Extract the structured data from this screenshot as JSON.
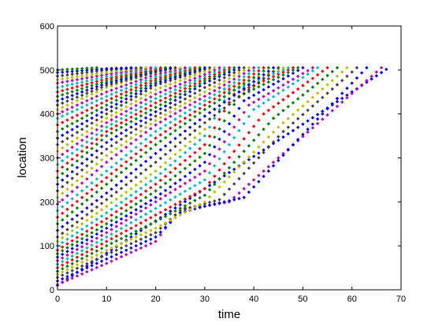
{
  "chart_data": {
    "type": "scatter",
    "title": "",
    "xlabel": "time",
    "ylabel": "location",
    "xlim": [
      0,
      70
    ],
    "ylim": [
      0,
      600
    ],
    "xticks": [
      "0",
      "10",
      "20",
      "30",
      "40",
      "50",
      "60",
      "70"
    ],
    "yticks": [
      "0",
      "100",
      "200",
      "300",
      "400",
      "500",
      "600"
    ],
    "grid": false,
    "legend": "none",
    "marker": "diamond",
    "marker_colors": [
      "#0000ff",
      "#008000",
      "#ff0000",
      "#00bfbf",
      "#bf00bf",
      "#bfbf00",
      "#404040"
    ],
    "max_location": 505,
    "series_description": "trajectories, one per color cycle",
    "series": [
      {
        "color": "#0000ff",
        "x": [
          0,
          67.5
        ],
        "y": [
          10,
          505
        ]
      },
      {
        "color": "#bf00bf",
        "x": [
          0,
          10,
          20,
          25,
          30,
          35,
          45,
          66
        ],
        "y": [
          12,
          60,
          110,
          185,
          190,
          200,
          300,
          505
        ]
      },
      {
        "color": "#0000ff",
        "x": [
          0,
          10,
          20,
          25,
          30,
          38,
          48,
          63
        ],
        "y": [
          20,
          70,
          120,
          175,
          190,
          210,
          330,
          505
        ]
      },
      {
        "color": "#404040",
        "x": [
          0,
          10,
          20,
          25,
          33,
          46,
          61
        ],
        "y": [
          28,
          80,
          130,
          180,
          205,
          360,
          505
        ]
      },
      {
        "color": "#bfbf00",
        "x": [
          0,
          10,
          20,
          30,
          45,
          59
        ],
        "y": [
          35,
          90,
          140,
          200,
          370,
          505
        ]
      },
      {
        "color": "#008000",
        "x": [
          0,
          10,
          20,
          30,
          44,
          57
        ],
        "y": [
          42,
          100,
          155,
          215,
          390,
          505
        ]
      },
      {
        "color": "#ff0000",
        "x": [
          0,
          10,
          20,
          30,
          42,
          55
        ],
        "y": [
          50,
          110,
          170,
          230,
          400,
          505
        ]
      },
      {
        "color": "#00bfbf",
        "x": [
          0,
          10,
          20,
          30,
          40,
          53
        ],
        "y": [
          58,
          120,
          185,
          250,
          410,
          505
        ]
      },
      {
        "color": "#bf00bf",
        "x": [
          0,
          10,
          20,
          30,
          39,
          52
        ],
        "y": [
          66,
          130,
          200,
          270,
          420,
          505
        ]
      },
      {
        "color": "#0000ff",
        "x": [
          0,
          10,
          20,
          30,
          38,
          50
        ],
        "y": [
          74,
          140,
          210,
          290,
          430,
          505
        ]
      },
      {
        "color": "#008000",
        "x": [
          0,
          10,
          20,
          30,
          37,
          49
        ],
        "y": [
          82,
          150,
          225,
          310,
          440,
          505
        ]
      },
      {
        "color": "#ff0000",
        "x": [
          0,
          10,
          20,
          30,
          36,
          48
        ],
        "y": [
          90,
          162,
          240,
          330,
          445,
          505
        ]
      },
      {
        "color": "#00bfbf",
        "x": [
          0,
          10,
          20,
          30,
          35,
          47
        ],
        "y": [
          100,
          175,
          255,
          350,
          450,
          505
        ]
      },
      {
        "color": "#bfbf00",
        "x": [
          0,
          10,
          20,
          30,
          34,
          46
        ],
        "y": [
          110,
          190,
          270,
          365,
          455,
          505
        ]
      },
      {
        "color": "#404040",
        "x": [
          0,
          10,
          20,
          30,
          45
        ],
        "y": [
          120,
          205,
          290,
          380,
          505
        ]
      },
      {
        "color": "#0000ff",
        "x": [
          0,
          10,
          20,
          30,
          44
        ],
        "y": [
          135,
          220,
          310,
          395,
          505
        ]
      },
      {
        "color": "#008000",
        "x": [
          0,
          10,
          20,
          30,
          43
        ],
        "y": [
          150,
          240,
          330,
          410,
          505
        ]
      },
      {
        "color": "#ff0000",
        "x": [
          0,
          10,
          20,
          30,
          42
        ],
        "y": [
          165,
          255,
          345,
          420,
          505
        ]
      },
      {
        "color": "#00bfbf",
        "x": [
          0,
          10,
          20,
          30,
          41
        ],
        "y": [
          180,
          270,
          360,
          430,
          505
        ]
      },
      {
        "color": "#bf00bf",
        "x": [
          0,
          10,
          20,
          30,
          40
        ],
        "y": [
          195,
          290,
          375,
          440,
          505
        ]
      },
      {
        "color": "#bfbf00",
        "x": [
          0,
          10,
          20,
          30,
          39
        ],
        "y": [
          210,
          305,
          385,
          450,
          505
        ]
      },
      {
        "color": "#404040",
        "x": [
          0,
          10,
          20,
          30,
          38
        ],
        "y": [
          225,
          320,
          395,
          460,
          505
        ]
      },
      {
        "color": "#0000ff",
        "x": [
          0,
          10,
          20,
          30,
          37
        ],
        "y": [
          240,
          335,
          405,
          470,
          505
        ]
      },
      {
        "color": "#008000",
        "x": [
          0,
          10,
          20,
          30,
          36
        ],
        "y": [
          255,
          350,
          415,
          475,
          505
        ]
      },
      {
        "color": "#ff0000",
        "x": [
          0,
          10,
          20,
          30,
          35
        ],
        "y": [
          270,
          360,
          425,
          480,
          505
        ]
      },
      {
        "color": "#00bfbf",
        "x": [
          0,
          10,
          20,
          30,
          34
        ],
        "y": [
          285,
          370,
          435,
          485,
          505
        ]
      },
      {
        "color": "#bf00bf",
        "x": [
          0,
          10,
          20,
          30,
          33
        ],
        "y": [
          300,
          380,
          445,
          490,
          505
        ]
      },
      {
        "color": "#bfbf00",
        "x": [
          0,
          10,
          20,
          32
        ],
        "y": [
          315,
          390,
          455,
          505
        ]
      },
      {
        "color": "#404040",
        "x": [
          0,
          10,
          20,
          31
        ],
        "y": [
          330,
          400,
          465,
          505
        ]
      },
      {
        "color": "#0000ff",
        "x": [
          0,
          10,
          20,
          30
        ],
        "y": [
          345,
          410,
          470,
          505
        ]
      },
      {
        "color": "#008000",
        "x": [
          0,
          10,
          20,
          29
        ],
        "y": [
          360,
          420,
          475,
          505
        ]
      },
      {
        "color": "#ff0000",
        "x": [
          0,
          10,
          20,
          28
        ],
        "y": [
          375,
          430,
          480,
          505
        ]
      },
      {
        "color": "#00bfbf",
        "x": [
          0,
          10,
          20,
          27
        ],
        "y": [
          390,
          440,
          485,
          505
        ]
      },
      {
        "color": "#bf00bf",
        "x": [
          0,
          10,
          20,
          26
        ],
        "y": [
          400,
          450,
          490,
          505
        ]
      },
      {
        "color": "#bfbf00",
        "x": [
          0,
          10,
          20,
          25
        ],
        "y": [
          410,
          460,
          495,
          505
        ]
      },
      {
        "color": "#404040",
        "x": [
          0,
          10,
          20,
          24
        ],
        "y": [
          420,
          465,
          495,
          505
        ]
      },
      {
        "color": "#0000ff",
        "x": [
          0,
          10,
          20,
          23
        ],
        "y": [
          430,
          470,
          498,
          505
        ]
      },
      {
        "color": "#008000",
        "x": [
          0,
          10,
          20,
          22
        ],
        "y": [
          440,
          475,
          500,
          505
        ]
      },
      {
        "color": "#ff0000",
        "x": [
          0,
          10,
          20,
          21
        ],
        "y": [
          450,
          480,
          502,
          505
        ]
      },
      {
        "color": "#00bfbf",
        "x": [
          0,
          10,
          20
        ],
        "y": [
          460,
          485,
          505
        ]
      },
      {
        "color": "#bf00bf",
        "x": [
          0,
          10,
          19
        ],
        "y": [
          470,
          490,
          505
        ]
      },
      {
        "color": "#bfbf00",
        "x": [
          0,
          10,
          18
        ],
        "y": [
          478,
          495,
          505
        ]
      },
      {
        "color": "#404040",
        "x": [
          0,
          10,
          17
        ],
        "y": [
          486,
          500,
          505
        ]
      },
      {
        "color": "#0000ff",
        "x": [
          0,
          10,
          15
        ],
        "y": [
          494,
          503,
          505
        ]
      },
      {
        "color": "#008000",
        "x": [
          0,
          8
        ],
        "y": [
          500,
          505
        ]
      }
    ]
  }
}
